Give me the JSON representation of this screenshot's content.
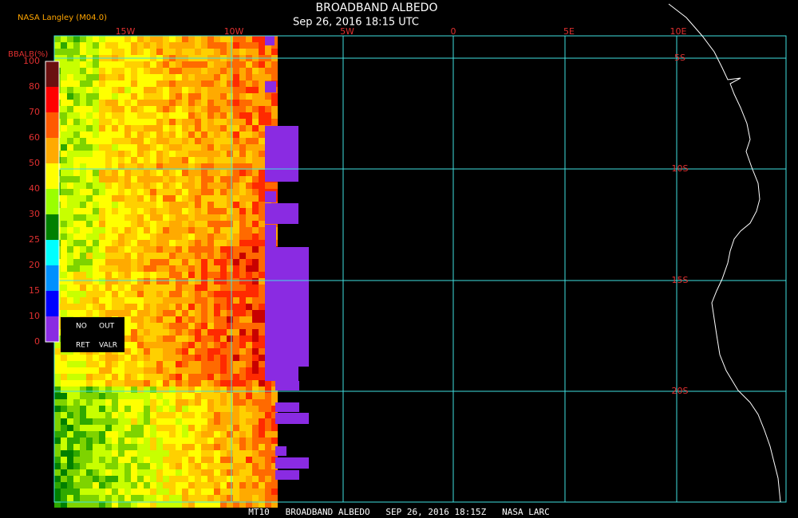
{
  "header": {
    "source": "NASA Langley (M04.0)",
    "title": "BROADBAND ALBEDO",
    "subtitle": "Sep 26, 2016 18:15 UTC"
  },
  "map": {
    "longitude_labels": [
      "15W",
      "10W",
      "5W",
      "0",
      "5E",
      "10E"
    ],
    "latitude_labels": [
      "5S",
      "10S",
      "15S",
      "20S"
    ]
  },
  "colorbar": {
    "title": "BBALB(%)",
    "labels": [
      "100",
      "80",
      "70",
      "60",
      "50",
      "40",
      "30",
      "25",
      "20",
      "15",
      "10",
      "0"
    ],
    "colors": [
      "#6a1010",
      "#ff0000",
      "#ff5a00",
      "#ffaa00",
      "#ffff00",
      "#9aff00",
      "#008000",
      "#00ffff",
      "#0090ff",
      "#0000ff",
      "#8a2be2"
    ],
    "legend_box": [
      "NO",
      "OUT",
      "RET",
      "VALR"
    ]
  },
  "footer": {
    "text": "MT10   BROADBAND ALBEDO   SEP 26, 2016 18:15Z   NASA LARC"
  }
}
